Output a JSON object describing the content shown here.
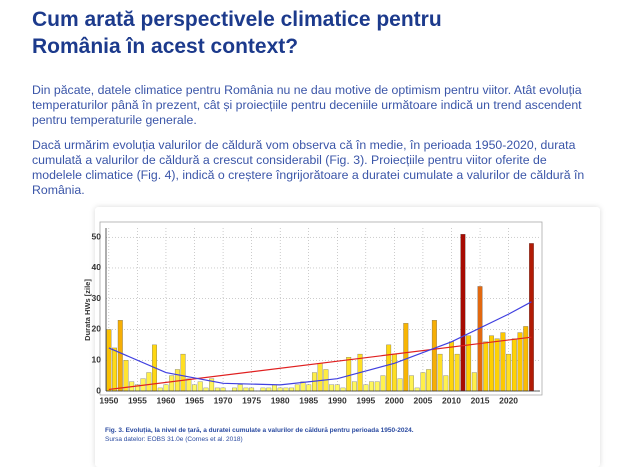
{
  "title": "Cum arată perspectivele climatice pentru România în acest context?",
  "paragraphs": [
    "Din păcate, datele climatice pentru România nu ne dau motive de optimism pentru viitor. Atât evoluția temperaturilor până în prezent, cât și proiecțiile pentru deceniile următoare indică un trend ascendent pentru temperaturile generale.",
    "Dacă urmărim evoluția valurilor de căldură vom observa că în medie, în perioada 1950-2020, durata cumulată a valurilor de căldură a crescut considerabil (Fig. 3). Proiecțiile pentru viitor oferite de modelele climatice (Fig. 4), indică o creștere îngrijorătoare a duratei cumulate a valurilor de căldură în România."
  ],
  "caption": "Fig. 3. Evoluția, la nivel de țară, a duratei cumulate a valurilor de căldură pentru perioada 1950-2024.",
  "source": "Sursa datelor: EOBS 31.0e (Cornes et al. 2018)",
  "chart_data": {
    "type": "bar",
    "ylabel": "Durata HWs [zile]",
    "x": [
      1950,
      1951,
      1952,
      1953,
      1954,
      1955,
      1956,
      1957,
      1958,
      1959,
      1960,
      1961,
      1962,
      1963,
      1964,
      1965,
      1966,
      1967,
      1968,
      1969,
      1970,
      1971,
      1972,
      1973,
      1974,
      1975,
      1976,
      1977,
      1978,
      1979,
      1980,
      1981,
      1982,
      1983,
      1984,
      1985,
      1986,
      1987,
      1988,
      1989,
      1990,
      1991,
      1992,
      1993,
      1994,
      1995,
      1996,
      1997,
      1998,
      1999,
      2000,
      2001,
      2002,
      2003,
      2004,
      2005,
      2006,
      2007,
      2008,
      2009,
      2010,
      2011,
      2012,
      2013,
      2014,
      2015,
      2016,
      2017,
      2018,
      2019,
      2020,
      2021,
      2022,
      2023,
      2024
    ],
    "values": [
      20,
      14,
      23,
      10,
      3,
      2,
      4,
      6,
      15,
      1,
      2,
      5,
      7,
      12,
      4,
      2,
      3,
      1,
      4,
      1,
      1,
      0,
      1,
      2,
      1,
      1,
      0,
      1,
      1,
      2,
      1,
      1,
      1,
      2,
      3,
      2,
      6,
      9,
      7,
      2,
      2,
      1,
      11,
      3,
      12,
      2,
      3,
      3,
      5,
      15,
      12,
      4,
      22,
      5,
      1,
      6,
      7,
      23,
      12,
      5,
      16,
      12,
      51,
      18,
      6,
      34,
      16,
      18,
      17,
      19,
      12,
      17,
      19,
      21,
      48
    ],
    "color_scale": [
      "#ffff70",
      "#ffd000",
      "#e06010",
      "#a00000"
    ],
    "trend_lines": [
      {
        "color": "#e02020",
        "x": [
          1950,
          2024
        ],
        "values": [
          0.5,
          17.5
        ]
      },
      {
        "color": "#4040e0",
        "x": [
          1950,
          1960,
          1970,
          1980,
          1990,
          2000,
          2010,
          2020,
          2024
        ],
        "values": [
          14,
          6,
          2.5,
          2,
          4,
          9,
          16,
          25,
          29
        ]
      }
    ],
    "xlim": [
      1949.5,
      2025.5
    ],
    "ylim": [
      0,
      53
    ],
    "xticks": [
      1950,
      1955,
      1960,
      1965,
      1970,
      1975,
      1980,
      1985,
      1990,
      1995,
      2000,
      2005,
      2010,
      2015,
      2020
    ],
    "yticks": [
      0,
      10,
      20,
      30,
      40,
      50
    ],
    "grid": true
  }
}
